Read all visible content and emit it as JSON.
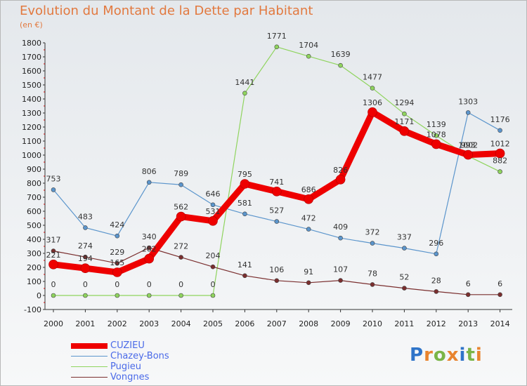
{
  "header": {
    "title": "Evolution du Montant de la Dette par Habitant",
    "subtitle": "(en €)"
  },
  "logo": {
    "text": "Proxiti",
    "letters": [
      "P",
      "r",
      "o",
      "x",
      "i",
      "t",
      "i"
    ],
    "colors": [
      "#2f74c9",
      "#e8842f",
      "#7ab547",
      "#e8842f",
      "#2f74c9",
      "#7ab547",
      "#e8842f"
    ]
  },
  "chart_data": {
    "type": "line",
    "title": "Evolution du Montant de la Dette par Habitant",
    "subtitle": "(en €)",
    "xlabel": "",
    "ylabel": "",
    "x": [
      "2000",
      "2001",
      "2002",
      "2003",
      "2004",
      "2005",
      "2006",
      "2007",
      "2008",
      "2009",
      "2010",
      "2011",
      "2012",
      "2013",
      "2014"
    ],
    "ylim": [
      -100,
      1800
    ],
    "yticks": [
      -100,
      0,
      100,
      200,
      300,
      400,
      500,
      600,
      700,
      800,
      900,
      1000,
      1100,
      1200,
      1300,
      1400,
      1500,
      1600,
      1700,
      1800
    ],
    "grid": false,
    "legend_position": "bottom-left",
    "series": [
      {
        "name": "CUZIEU",
        "color": "#ee0000",
        "values": [
          221,
          194,
          165,
          262,
          562,
          531,
          795,
          741,
          686,
          826,
          1306,
          1171,
          1078,
          1002,
          1012
        ],
        "labels": [
          "221",
          "194",
          "165",
          "262",
          "562",
          "531",
          "795",
          "741",
          "686",
          "826",
          "1306",
          "1171",
          "1078",
          "1002",
          "1012"
        ]
      },
      {
        "name": "Chazey-Bons",
        "color": "#5b95cc",
        "values": [
          753,
          483,
          424,
          806,
          789,
          646,
          581,
          527,
          472,
          409,
          372,
          337,
          296,
          1303,
          1176
        ],
        "labels": [
          "753",
          "483",
          "424",
          "806",
          "789",
          "646",
          "581",
          "527",
          "472",
          "409",
          "372",
          "337",
          "296",
          "1303",
          "1176"
        ]
      },
      {
        "name": "Pugieu",
        "color": "#8fd45e",
        "values": [
          0,
          0,
          0,
          0,
          0,
          0,
          1441,
          1771,
          1704,
          1639,
          1477,
          1294,
          1139,
          993,
          882
        ],
        "labels": [
          "0",
          "0",
          "0",
          "0",
          "0",
          "0",
          "1441",
          "1771",
          "1704",
          "1639",
          "1477",
          "1294",
          "1139",
          "993",
          "882"
        ]
      },
      {
        "name": "Vongnes",
        "color": "#7a2e2e",
        "values": [
          317,
          274,
          229,
          340,
          272,
          204,
          141,
          106,
          91,
          107,
          78,
          52,
          28,
          6,
          6
        ],
        "labels": [
          "317",
          "274",
          "229",
          "340",
          "272",
          "204",
          "141",
          "106",
          "91",
          "107",
          "78",
          "52",
          "28",
          "6",
          "6"
        ]
      }
    ]
  }
}
